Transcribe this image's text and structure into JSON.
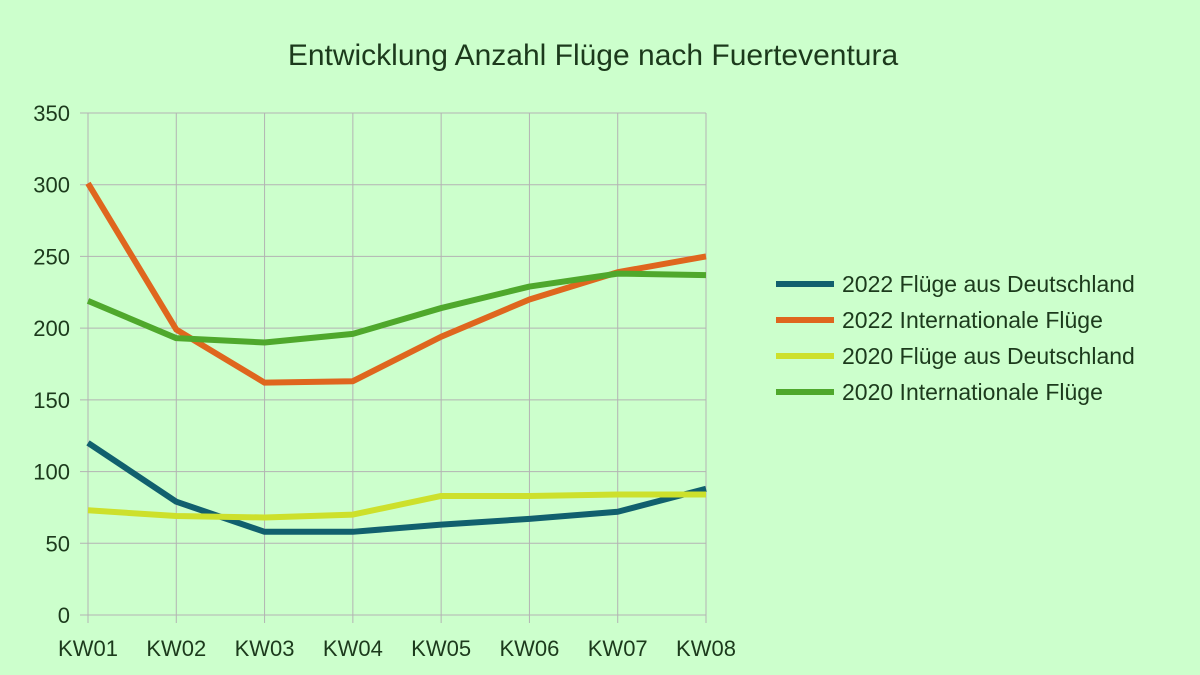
{
  "chart_data": {
    "type": "line",
    "title": "Entwicklung Anzahl Flüge nach Fuerteventura",
    "xlabel": "",
    "ylabel": "",
    "categories": [
      "KW01",
      "KW02",
      "KW03",
      "KW04",
      "KW05",
      "KW06",
      "KW07",
      "KW08"
    ],
    "ylim": [
      0,
      350
    ],
    "yticks": [
      0,
      50,
      100,
      150,
      200,
      250,
      300,
      350
    ],
    "grid": true,
    "legend_position": "right",
    "series": [
      {
        "name": "2022 Flüge aus Deutschland",
        "color": "#11606e",
        "values": [
          120,
          79,
          58,
          58,
          63,
          67,
          72,
          88
        ]
      },
      {
        "name": "2022 Internationale Flüge",
        "color": "#df661e",
        "values": [
          301,
          199,
          162,
          163,
          194,
          220,
          239,
          250
        ]
      },
      {
        "name": "2020 Flüge aus Deutschland",
        "color": "#cde02c",
        "values": [
          73,
          69,
          68,
          70,
          83,
          83,
          84,
          84
        ]
      },
      {
        "name": "2020 Internationale Flüge",
        "color": "#4fa82c",
        "values": [
          219,
          193,
          190,
          196,
          214,
          229,
          238,
          237
        ]
      }
    ]
  }
}
